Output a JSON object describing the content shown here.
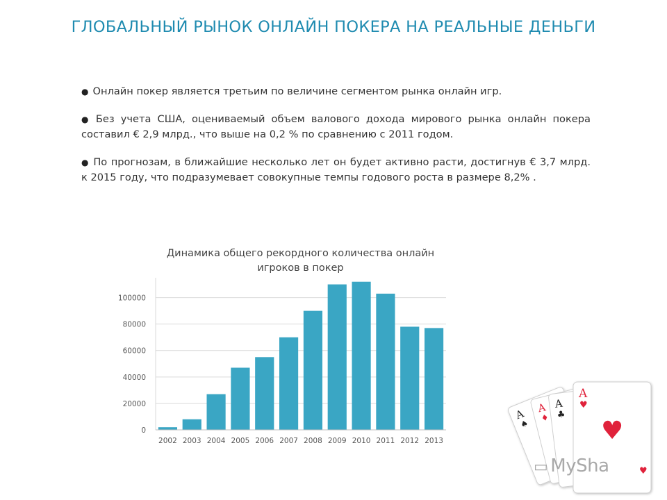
{
  "slide": {
    "title": "ГЛОБАЛЬНЫЙ РЫНОК ОНЛАЙН ПОКЕРА НА РЕАЛЬНЫЕ ДЕНЬГИ",
    "bullet_mark": "●",
    "bullets": [
      "Онлайн покер является третьим по величине сегментом рынка онлайн игр.",
      "Без учета США, оцениваемый объем валового дохода мирового рынка онлайн покера составил € 2,9 млрд., что выше на 0,2 % по сравнению с 2011 годом.",
      "По прогнозам, в ближайшие несколько лет он будет активно расти, достигнув € 3,7 млрд. к 2015 году, что подразумевает совокупные темпы годового роста в размере 8,2% ."
    ]
  },
  "chart_data": {
    "type": "bar",
    "title": "Динамика общего рекордного количества онлайн игроков в покер",
    "categories": [
      "2002",
      "2003",
      "2004",
      "2005",
      "2006",
      "2007",
      "2008",
      "2009",
      "2010",
      "2011",
      "2012",
      "2013"
    ],
    "values": [
      2000,
      8000,
      27000,
      47000,
      55000,
      70000,
      90000,
      110000,
      112000,
      103000,
      78000,
      77000
    ],
    "yticks": [
      0,
      20000,
      40000,
      60000,
      80000,
      100000
    ],
    "ylim": [
      0,
      115000
    ],
    "grid": true,
    "legend": "none",
    "bar_color": "#3aa6c4"
  },
  "decor": {
    "card_rank": "A",
    "watermark": "MySha"
  }
}
